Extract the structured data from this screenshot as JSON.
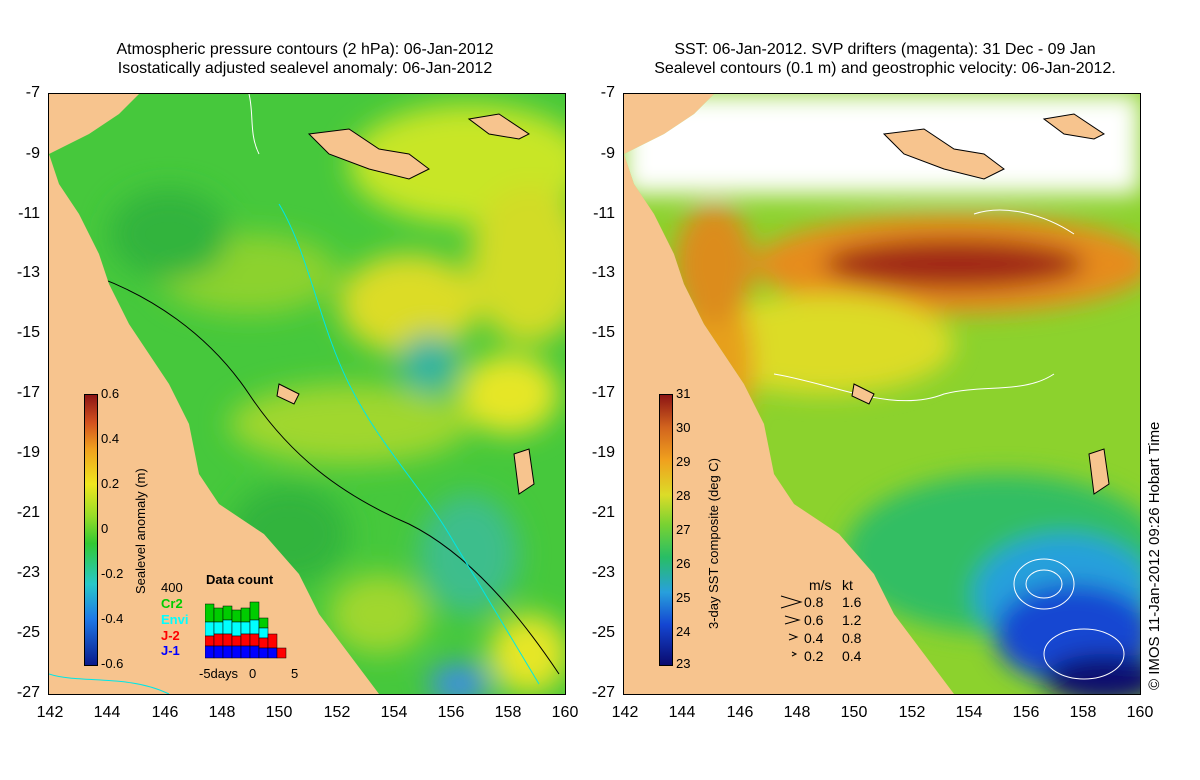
{
  "left_panel": {
    "title_line1": "Atmospheric pressure contours (2 hPa): 06-Jan-2012",
    "title_line2": "Isostatically adjusted sealevel anomaly: 06-Jan-2012",
    "colorbar_title": "Sealevel anomaly (m)",
    "colorbar_ticks": [
      "0.6",
      "0.4",
      "0.2",
      "0",
      "-0.2",
      "-0.4",
      "-0.6"
    ],
    "data_count": {
      "title": "Data count",
      "max_label": "400",
      "satellites": [
        {
          "name": "Cr2",
          "color": "#00cc00"
        },
        {
          "name": "Envi",
          "color": "#00ffff"
        },
        {
          "name": "J-2",
          "color": "#ff0000"
        },
        {
          "name": "J-1",
          "color": "#0000ff"
        }
      ],
      "x_labels": [
        "-5days",
        "0",
        "5"
      ]
    }
  },
  "right_panel": {
    "title_line1": "SST: 06-Jan-2012. SVP drifters (magenta): 31 Dec - 09 Jan",
    "title_line2": "Sealevel contours (0.1 m) and geostrophic velocity: 06-Jan-2012.",
    "colorbar_title": "3-day SST composite (deg C)",
    "colorbar_ticks": [
      "31",
      "30",
      "29",
      "28",
      "27",
      "26",
      "25",
      "24",
      "23"
    ],
    "velocity_legend": {
      "header_ms": "m/s",
      "header_kt": "kt",
      "rows": [
        {
          "ms": "0.8",
          "kt": "1.6"
        },
        {
          "ms": "0.6",
          "kt": "1.2"
        },
        {
          "ms": "0.4",
          "kt": "0.8"
        },
        {
          "ms": "0.2",
          "kt": "0.4"
        }
      ]
    },
    "credit": "© IMOS 11-Jan-2012 09:26 Hobart Time"
  },
  "axes": {
    "lat_ticks": [
      "-7",
      "-9",
      "-11",
      "-13",
      "-15",
      "-17",
      "-19",
      "-21",
      "-23",
      "-25",
      "-27"
    ],
    "lon_ticks": [
      "142",
      "144",
      "146",
      "148",
      "150",
      "152",
      "154",
      "156",
      "158",
      "160"
    ]
  },
  "colors": {
    "land": "#f7c48e",
    "sla_ramp": [
      "#0a1a8c",
      "#1e78e6",
      "#28c8c8",
      "#32c832",
      "#96dc28",
      "#f0e61e",
      "#f0a01e",
      "#d2501e",
      "#8c1414"
    ],
    "sst_ramp": [
      "#0a0a6e",
      "#1446d2",
      "#28a0dc",
      "#28be64",
      "#78d232",
      "#dcdc28",
      "#f0a01e",
      "#d2641e",
      "#8c1414"
    ]
  }
}
